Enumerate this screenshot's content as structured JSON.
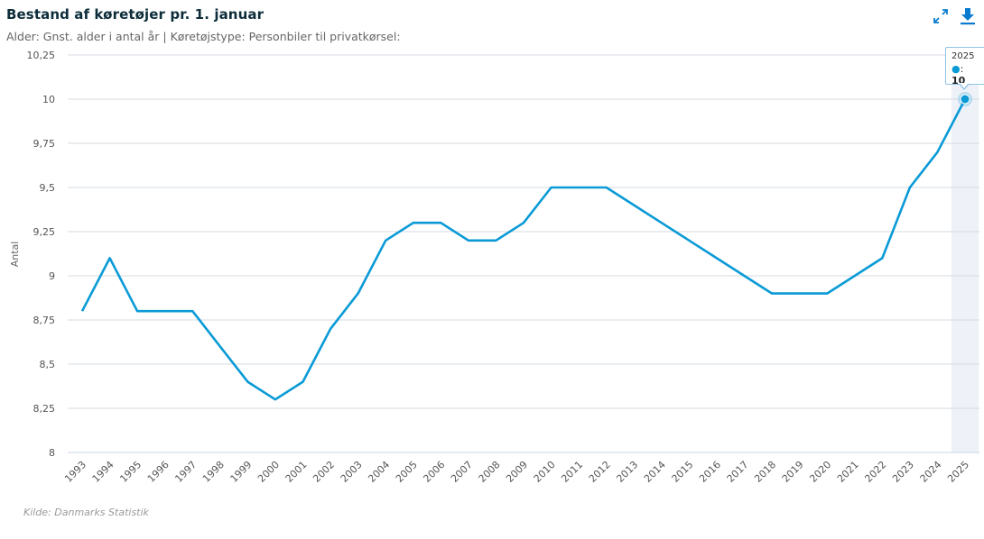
{
  "header": {
    "title": "Bestand af køretøjer pr. 1. januar",
    "subtitle": "Alder: Gnst. alder i antal år | Køretøjstype: Personbiler til privatkørsel:"
  },
  "toolbar": {
    "expand_icon": "expand-arrows-icon",
    "download_icon": "download-icon"
  },
  "tooltip": {
    "year": "2025",
    "separator": ": ",
    "value": "10",
    "marker": "●"
  },
  "footer": {
    "source": "Kilde: Danmarks Statistik"
  },
  "colors": {
    "line": "#0a9ad6",
    "grid": "#d6dbe1",
    "highlight_band": "#eef2f8",
    "title": "#0d2d3a"
  },
  "chart_data": {
    "type": "line",
    "title": "Bestand af køretøjer pr. 1. januar",
    "subtitle": "Alder: Gnst. alder i antal år | Køretøjstype: Personbiler til privatkørsel:",
    "xlabel": "",
    "ylabel": "Antal",
    "ylim": [
      8,
      10.25
    ],
    "yticks": [
      8,
      8.25,
      8.5,
      8.75,
      9,
      9.25,
      9.5,
      9.75,
      10,
      10.25
    ],
    "ytick_labels": [
      "8",
      "8,25",
      "8,5",
      "8,75",
      "9",
      "9,25",
      "9,5",
      "9,75",
      "10",
      "10,25"
    ],
    "grid": true,
    "legend": "none",
    "highlighted_category": "2025",
    "categories": [
      "1993",
      "1994",
      "1995",
      "1996",
      "1997",
      "1998",
      "1999",
      "2000",
      "2001",
      "2002",
      "2003",
      "2004",
      "2005",
      "2006",
      "2007",
      "2008",
      "2009",
      "2010",
      "2011",
      "2012",
      "2013",
      "2014",
      "2015",
      "2016",
      "2017",
      "2018",
      "2019",
      "2020",
      "2021",
      "2022",
      "2023",
      "2024",
      "2025"
    ],
    "series": [
      {
        "name": "Gnst. alder i antal år",
        "values": [
          8.8,
          9.1,
          8.8,
          8.8,
          8.8,
          8.6,
          8.4,
          8.3,
          8.4,
          8.7,
          8.9,
          9.2,
          9.3,
          9.3,
          9.2,
          9.2,
          9.3,
          9.5,
          9.5,
          9.5,
          9.4,
          9.3,
          9.2,
          9.1,
          9.0,
          8.9,
          8.9,
          8.9,
          9.0,
          9.1,
          9.5,
          9.7,
          10
        ]
      }
    ]
  }
}
